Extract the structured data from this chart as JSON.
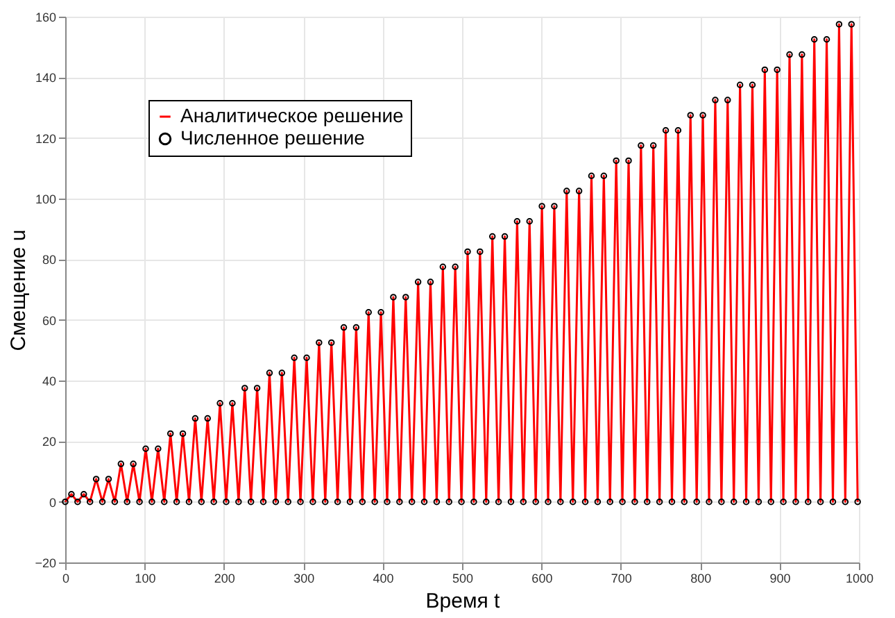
{
  "chart_data": {
    "type": "line",
    "xlabel": "Время t",
    "ylabel": "Смещение u",
    "x": [
      0,
      7.8,
      15.6,
      23.4,
      31.2,
      39,
      46.8,
      54.6,
      62.4,
      70.2,
      78,
      85.8,
      93.6,
      101.4,
      109.2,
      117,
      124.8,
      132.6,
      140.4,
      148.2,
      156,
      163.8,
      171.6,
      179.4,
      187.2,
      195,
      202.8,
      210.6,
      218.4,
      226.2,
      234,
      241.8,
      249.6,
      257.4,
      265.2,
      273,
      280.8,
      288.6,
      296.4,
      304.2,
      312,
      319.8,
      327.6,
      335.4,
      343.2,
      351,
      358.8,
      366.6,
      374.4,
      382.2,
      390,
      397.8,
      405.6,
      413.4,
      421.2,
      429,
      436.8,
      444.6,
      452.4,
      460.2,
      468,
      475.8,
      483.6,
      491.4,
      499.2,
      507,
      514.8,
      522.6,
      530.4,
      538.2,
      546,
      553.8,
      561.6,
      569.4,
      577.2,
      585,
      592.8,
      600.6,
      608.4,
      616.2,
      624,
      631.8,
      639.6,
      647.4,
      655.2,
      663,
      670.8,
      678.6,
      686.4,
      694.2,
      702,
      709.8,
      717.6,
      725.4,
      733.2,
      741,
      748.8,
      756.6,
      764.4,
      772.2,
      780,
      787.8,
      795.6,
      803.4,
      811.2,
      819,
      826.8,
      834.6,
      842.4,
      850.2,
      858,
      865.8,
      873.6,
      881.4,
      889.2,
      897,
      904.8,
      912.6,
      920.4,
      928.2,
      936,
      943.8,
      951.6,
      959.4,
      967.2,
      975,
      982.8,
      990.6,
      998.4
    ],
    "series": [
      {
        "name": "Аналитическое решение",
        "color": "#ff0000",
        "marker": "none",
        "line_style": "solid",
        "values": [
          0,
          2.5,
          0,
          2.5,
          0,
          7.5,
          0,
          7.5,
          0,
          12.5,
          0,
          12.5,
          0,
          17.5,
          0,
          17.5,
          0,
          22.5,
          0,
          22.5,
          0,
          27.5,
          0,
          27.5,
          0,
          32.5,
          0,
          32.5,
          0,
          37.5,
          0,
          37.5,
          0,
          42.5,
          0,
          42.5,
          0,
          47.5,
          0,
          47.5,
          0,
          52.5,
          0,
          52.5,
          0,
          57.5,
          0,
          57.5,
          0,
          62.5,
          0,
          62.5,
          0,
          67.5,
          0,
          67.5,
          0,
          72.5,
          0,
          72.5,
          0,
          77.5,
          0,
          77.5,
          0,
          82.5,
          0,
          82.5,
          0,
          87.5,
          0,
          87.5,
          0,
          92.5,
          0,
          92.5,
          0,
          97.5,
          0,
          97.5,
          0,
          102.5,
          0,
          102.5,
          0,
          107.5,
          0,
          107.5,
          0,
          112.5,
          0,
          112.5,
          0,
          117.5,
          0,
          117.5,
          0,
          122.5,
          0,
          122.5,
          0,
          127.5,
          0,
          127.5,
          0,
          132.5,
          0,
          132.5,
          0,
          137.5,
          0,
          137.5,
          0,
          142.5,
          0,
          142.5,
          0,
          147.5,
          0,
          147.5,
          0,
          152.5,
          0,
          152.5,
          0,
          157.5,
          0,
          157.5,
          0
        ]
      },
      {
        "name": "Численное решение",
        "type": "scatter",
        "color": "#000000",
        "marker": "circle",
        "values": [
          0,
          2.5,
          0,
          2.5,
          0,
          7.5,
          0,
          7.5,
          0,
          12.5,
          0,
          12.5,
          0,
          17.5,
          0,
          17.5,
          0,
          22.5,
          0,
          22.5,
          0,
          27.5,
          0,
          27.5,
          0,
          32.5,
          0,
          32.5,
          0,
          37.5,
          0,
          37.5,
          0,
          42.5,
          0,
          42.5,
          0,
          47.5,
          0,
          47.5,
          0,
          52.5,
          0,
          52.5,
          0,
          57.5,
          0,
          57.5,
          0,
          62.5,
          0,
          62.5,
          0,
          67.5,
          0,
          67.5,
          0,
          72.5,
          0,
          72.5,
          0,
          77.5,
          0,
          77.5,
          0,
          82.5,
          0,
          82.5,
          0,
          87.5,
          0,
          87.5,
          0,
          92.5,
          0,
          92.5,
          0,
          97.5,
          0,
          97.5,
          0,
          102.5,
          0,
          102.5,
          0,
          107.5,
          0,
          107.5,
          0,
          112.5,
          0,
          112.5,
          0,
          117.5,
          0,
          117.5,
          0,
          122.5,
          0,
          122.5,
          0,
          127.5,
          0,
          127.5,
          0,
          132.5,
          0,
          132.5,
          0,
          137.5,
          0,
          137.5,
          0,
          142.5,
          0,
          142.5,
          0,
          147.5,
          0,
          147.5,
          0,
          152.5,
          0,
          152.5,
          0,
          157.5,
          0,
          157.5,
          0
        ]
      }
    ],
    "xlim": [
      0,
      1000
    ],
    "xticks": [
      0,
      100,
      200,
      300,
      400,
      500,
      600,
      700,
      800,
      900,
      1000
    ],
    "ylim": [
      -20,
      160
    ],
    "yticks": [
      -20,
      0,
      20,
      40,
      60,
      80,
      100,
      120,
      140,
      160
    ],
    "grid": true,
    "legend": "top left"
  }
}
